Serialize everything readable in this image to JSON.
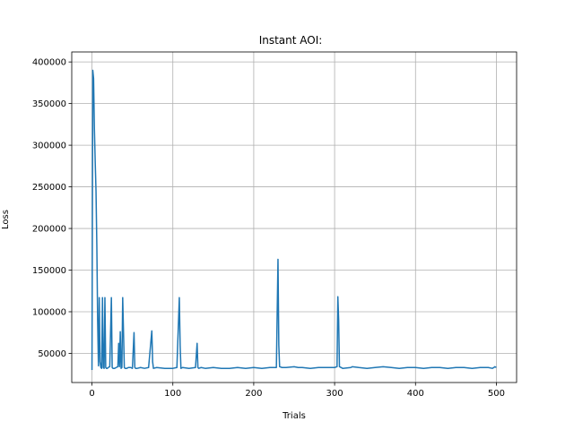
{
  "chart_data": {
    "type": "line",
    "title": "Instant AOI:",
    "xlabel": "Trials",
    "ylabel": "Loss",
    "xlim": [
      -25,
      525
    ],
    "ylim": [
      15000,
      412000
    ],
    "xticks": [
      0,
      100,
      200,
      300,
      400,
      500
    ],
    "yticks": [
      50000,
      100000,
      150000,
      200000,
      250000,
      300000,
      350000,
      400000
    ],
    "xtick_labels": [
      "0",
      "100",
      "200",
      "300",
      "400",
      "500"
    ],
    "ytick_labels": [
      "50000",
      "100000",
      "150000",
      "200000",
      "250000",
      "300000",
      "350000",
      "400000"
    ],
    "grid": true,
    "line_color": "#1f77b4",
    "series": [
      {
        "x": [
          0,
          1,
          2,
          3,
          4,
          5,
          6,
          7,
          8,
          9,
          10,
          11,
          12,
          13,
          14,
          15,
          16,
          17,
          18,
          19,
          20,
          22,
          24,
          25,
          26,
          28,
          30,
          32,
          33,
          34,
          35,
          36,
          37,
          38,
          40,
          41,
          42,
          43,
          45,
          48,
          50,
          52,
          53,
          54,
          56,
          60,
          65,
          70,
          74,
          75,
          76,
          80,
          90,
          100,
          105,
          108,
          109,
          110,
          112,
          120,
          128,
          130,
          131,
          132,
          135,
          140,
          150,
          160,
          170,
          180,
          190,
          200,
          210,
          220,
          228,
          230,
          231,
          232,
          235,
          240,
          250,
          255,
          260,
          270,
          280,
          290,
          300,
          303,
          304,
          305,
          306,
          310,
          320,
          322,
          330,
          340,
          350,
          360,
          370,
          380,
          390,
          400,
          410,
          420,
          430,
          440,
          450,
          460,
          470,
          480,
          490,
          495,
          497,
          498,
          500
        ],
        "y": [
          30000,
          390000,
          380000,
          320000,
          280000,
          245000,
          180000,
          90000,
          35000,
          117000,
          40000,
          33000,
          32000,
          117000,
          33000,
          32000,
          117000,
          33000,
          32000,
          32000,
          33000,
          34000,
          117000,
          33000,
          32000,
          32000,
          33000,
          34000,
          62000,
          34000,
          76000,
          32000,
          33000,
          117000,
          33000,
          32000,
          32000,
          32000,
          33000,
          33000,
          32000,
          75000,
          33000,
          32000,
          32000,
          33000,
          32000,
          33000,
          77000,
          40000,
          32000,
          33000,
          32000,
          32000,
          33000,
          117000,
          60000,
          32000,
          33000,
          32000,
          33000,
          62000,
          33000,
          32000,
          33000,
          32000,
          33000,
          32000,
          32000,
          33000,
          32000,
          33000,
          32000,
          33000,
          33000,
          163000,
          60000,
          34000,
          33000,
          33000,
          34000,
          33000,
          33000,
          32000,
          33000,
          33000,
          33000,
          34000,
          118000,
          90000,
          34000,
          32000,
          33000,
          34000,
          33000,
          32000,
          33000,
          34000,
          33000,
          32000,
          33000,
          33000,
          32000,
          33000,
          33000,
          32000,
          33000,
          33000,
          32000,
          33000,
          33000,
          32000,
          33000,
          34000,
          33000
        ]
      }
    ]
  }
}
